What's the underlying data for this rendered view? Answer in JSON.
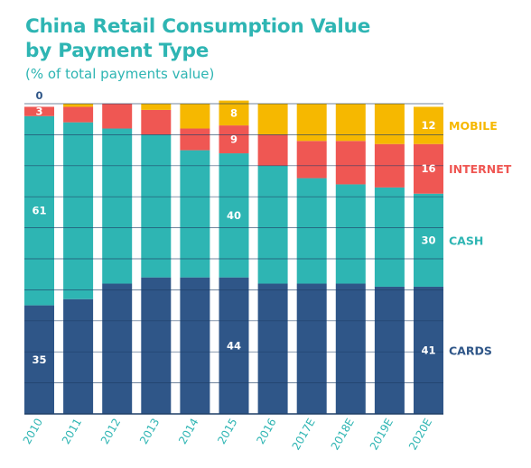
{
  "title_line1": "China Retail Consumption Value",
  "title_line2": "by Payment Type",
  "subtitle": "(% of total payments value)",
  "colors": {
    "cards": "#2f5688",
    "cash": "#2eb5b3",
    "internet": "#ef5753",
    "mobile": "#f6b800",
    "gridline": "#1f3f66",
    "axis_text": "#2eb5b3"
  },
  "chart_data": {
    "type": "bar",
    "stacked": true,
    "title": "China Retail Consumption Value by Payment Type",
    "subtitle": "(% of total payments value)",
    "ylim": [
      0,
      100
    ],
    "categories": [
      "2010",
      "2011",
      "2012",
      "2013",
      "2014",
      "2015",
      "2016",
      "2017E",
      "2018E",
      "2019E",
      "2020E"
    ],
    "series": [
      {
        "name": "CARDS",
        "color": "#2f5688",
        "values": [
          35,
          37,
          42,
          44,
          44,
          44,
          42,
          42,
          42,
          41,
          41
        ]
      },
      {
        "name": "CASH",
        "color": "#2eb5b3",
        "values": [
          61,
          57,
          50,
          46,
          41,
          40,
          38,
          34,
          32,
          32,
          30
        ]
      },
      {
        "name": "INTERNET",
        "color": "#ef5753",
        "values": [
          3,
          5,
          8,
          8,
          7,
          9,
          10,
          12,
          14,
          14,
          16
        ]
      },
      {
        "name": "MOBILE",
        "color": "#f6b800",
        "values": [
          0,
          1,
          0,
          2,
          8,
          8,
          10,
          12,
          12,
          13,
          12
        ]
      }
    ],
    "data_labels": [
      {
        "category": "2010",
        "series": "CARDS",
        "text": "35"
      },
      {
        "category": "2010",
        "series": "CASH",
        "text": "61"
      },
      {
        "category": "2010",
        "series": "INTERNET",
        "text": "3"
      },
      {
        "category": "2010",
        "series": "MOBILE",
        "text": "0"
      },
      {
        "category": "2015",
        "series": "CARDS",
        "text": "44"
      },
      {
        "category": "2015",
        "series": "CASH",
        "text": "40"
      },
      {
        "category": "2015",
        "series": "INTERNET",
        "text": "9"
      },
      {
        "category": "2015",
        "series": "MOBILE",
        "text": "8"
      },
      {
        "category": "2020E",
        "series": "CARDS",
        "text": "41"
      },
      {
        "category": "2020E",
        "series": "CASH",
        "text": "30"
      },
      {
        "category": "2020E",
        "series": "INTERNET",
        "text": "16"
      },
      {
        "category": "2020E",
        "series": "MOBILE",
        "text": "12"
      }
    ],
    "legend": "right",
    "grid": true
  }
}
